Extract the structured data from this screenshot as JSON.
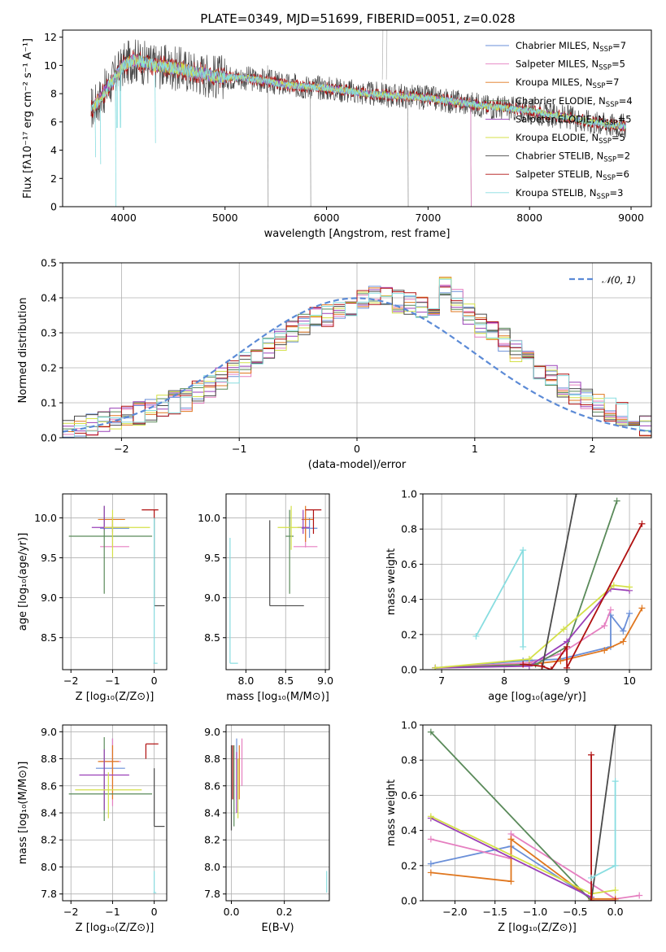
{
  "title": "PLATE=0349, MJD=51699, FIBERID=0051, z=0.028",
  "colors": {
    "Chabrier MILES": "#6a8fd8",
    "Salpeter MILES": "#e57fc0",
    "Kroupa MILES": "#e0771f",
    "Chabrier ELODIE": "#5a8a5a",
    "Salpeter ELODIE": "#9a40b8",
    "Kroupa ELODIE": "#d4e048",
    "Chabrier STELIB": "#4a4a4a",
    "Salpeter STELIB": "#b01010",
    "Kroupa STELIB": "#88dde0"
  },
  "chart_data": [
    {
      "id": "spectrum",
      "type": "line",
      "xlabel": "wavelength [Angstrom, rest frame]",
      "ylabel": "Flux [fλ10⁻¹⁷ erg cm⁻² s⁻¹ A⁻¹]",
      "xlim": [
        3400,
        9200
      ],
      "ylim": [
        0,
        12.5
      ],
      "xticks": [
        4000,
        5000,
        6000,
        7000,
        8000,
        9000
      ],
      "yticks": [
        0,
        2,
        4,
        6,
        8,
        10,
        12
      ],
      "grid": false,
      "legend_position": "top-right",
      "legend": [
        "Chabrier MILES, N_SSP=7",
        "Salpeter MILES, N_SSP=5",
        "Kroupa MILES, N_SSP=7",
        "Chabrier ELODIE, N_SSP=4",
        "Salpeter ELODIE, N_SSP=5",
        "Kroupa ELODIE, N_SSP=5",
        "Chabrier STELIB, N_SSP=2",
        "Salpeter STELIB, N_SSP=6",
        "Kroupa STELIB, N_SSP=3"
      ],
      "series": [
        {
          "name": "data",
          "x": [
            3700,
            3800,
            3900,
            4000,
            4100,
            4200,
            4300,
            4400,
            4500,
            4600,
            4700,
            4800,
            4900,
            5000,
            5200,
            5400,
            5600,
            5800,
            6000,
            6200,
            6400,
            6600,
            6800,
            7000,
            7200,
            7400,
            7600,
            7800,
            8000,
            8200,
            8400,
            8600,
            8800,
            8950
          ],
          "y": [
            7.5,
            8.5,
            9.5,
            10.5,
            10.8,
            10.5,
            10.3,
            10.0,
            9.9,
            9.8,
            9.6,
            9.5,
            9.3,
            9.3,
            9.2,
            9.0,
            8.7,
            8.6,
            8.5,
            8.3,
            8.1,
            8.0,
            7.9,
            7.8,
            7.6,
            7.4,
            7.2,
            7.0,
            6.9,
            6.6,
            6.3,
            6.0,
            5.8,
            5.7
          ]
        },
        {
          "name": "models",
          "x": [
            3700,
            3800,
            3900,
            4000,
            4100,
            4200,
            4300,
            4400,
            4500,
            4600,
            4700,
            4800,
            4900,
            5000,
            5200,
            5400,
            5600,
            5800,
            6000,
            6200,
            6400,
            6600,
            6800,
            7000,
            7200,
            7400,
            7600,
            7800,
            8000,
            8200,
            8400,
            8600,
            8800,
            8950
          ],
          "y": [
            7.0,
            8.0,
            9.0,
            10.0,
            10.4,
            10.2,
            10.0,
            9.9,
            9.8,
            9.7,
            9.5,
            9.4,
            9.2,
            9.2,
            9.1,
            8.9,
            8.6,
            8.5,
            8.4,
            8.2,
            8.0,
            7.9,
            7.8,
            7.7,
            7.5,
            7.3,
            7.1,
            6.95,
            6.8,
            6.5,
            6.3,
            6.0,
            5.8,
            5.7
          ]
        }
      ]
    },
    {
      "id": "residuals",
      "type": "line",
      "xlabel": "(data-model)/error",
      "ylabel": "Normed distribution",
      "xlim": [
        -2.5,
        2.5
      ],
      "ylim": [
        0,
        0.5
      ],
      "xticks": [
        -2,
        -1,
        0,
        1,
        2
      ],
      "yticks": [
        0.0,
        0.1,
        0.2,
        0.3,
        0.4,
        0.5
      ],
      "grid": true,
      "legend_position": "top-right",
      "legend": [
        "𝒩(0, 1)"
      ],
      "series": [
        {
          "name": "𝒩(0, 1)",
          "mu": 0,
          "sigma": 1
        }
      ],
      "histogram_bin_edges_start": -2.5,
      "histogram_bin_width": 0.1,
      "histogram_values": [
        0.02,
        0.03,
        0.04,
        0.05,
        0.05,
        0.06,
        0.07,
        0.08,
        0.09,
        0.1,
        0.11,
        0.13,
        0.15,
        0.17,
        0.19,
        0.21,
        0.23,
        0.26,
        0.28,
        0.3,
        0.32,
        0.34,
        0.35,
        0.37,
        0.38,
        0.39,
        0.4,
        0.41,
        0.39,
        0.38,
        0.37,
        0.38,
        0.44,
        0.39,
        0.35,
        0.32,
        0.3,
        0.28,
        0.25,
        0.22,
        0.2,
        0.18,
        0.15,
        0.13,
        0.11,
        0.09,
        0.08,
        0.07,
        0.05,
        0.04
      ]
    },
    {
      "id": "age-vs-Z",
      "type": "scatter",
      "xlabel": "Z [log₁₀(Z/Z⊙)]",
      "ylabel": "age  [log₁₀(age/yr)]",
      "xlim": [
        -2.2,
        0.3
      ],
      "ylim": [
        8.1,
        10.3
      ],
      "xticks": [
        -2,
        -1,
        0
      ],
      "yticks": [
        8.5,
        9.0,
        9.5,
        10.0
      ],
      "grid": true
    },
    {
      "id": "age-vs-mass",
      "type": "scatter",
      "xlabel": "mass [log₁₀(M/M⊙)]",
      "ylabel": "",
      "xlim": [
        7.75,
        9.05
      ],
      "ylim": [
        8.1,
        10.3
      ],
      "xticks": [
        8.0,
        8.5,
        9.0
      ],
      "yticks": [
        8.5,
        9.0,
        9.5,
        10.0
      ],
      "grid": true
    },
    {
      "id": "massweight-vs-age",
      "type": "line",
      "xlabel": "age  [log₁₀(age/yr)]",
      "ylabel": "mass weight",
      "xlim": [
        6.7,
        10.35
      ],
      "ylim": [
        0,
        1
      ],
      "xticks": [
        7,
        8,
        9,
        10
      ],
      "yticks": [
        0.0,
        0.2,
        0.4,
        0.6,
        0.8,
        1.0
      ],
      "grid": true,
      "series": [
        {
          "name": "Chabrier MILES",
          "x": [
            6.9,
            8.3,
            8.9,
            9.7,
            9.7,
            9.9,
            10.0
          ],
          "y": [
            0.01,
            0.05,
            0.06,
            0.13,
            0.31,
            0.22,
            0.32
          ]
        },
        {
          "name": "Salpeter MILES",
          "x": [
            6.9,
            8.4,
            8.9,
            9.6,
            9.7
          ],
          "y": [
            0.01,
            0.04,
            0.09,
            0.25,
            0.34
          ]
        },
        {
          "name": "Kroupa MILES",
          "x": [
            6.9,
            8.4,
            8.9,
            9.6,
            9.9,
            10.2
          ],
          "y": [
            0.01,
            0.03,
            0.05,
            0.11,
            0.16,
            0.35
          ]
        },
        {
          "name": "Chabrier ELODIE",
          "x": [
            6.9,
            8.5,
            9.0,
            9.8
          ],
          "y": [
            0.01,
            0.03,
            0.13,
            0.96
          ]
        },
        {
          "name": "Salpeter ELODIE",
          "x": [
            6.9,
            8.4,
            9.0,
            9.7,
            10.0
          ],
          "y": [
            0.01,
            0.02,
            0.16,
            0.46,
            0.45
          ]
        },
        {
          "name": "Kroupa ELODIE",
          "x": [
            6.9,
            8.4,
            8.95,
            9.75,
            10.0
          ],
          "y": [
            0.01,
            0.06,
            0.23,
            0.48,
            0.47
          ]
        },
        {
          "name": "Chabrier STELIB",
          "x": [
            8.6,
            9.15
          ],
          "y": [
            0.0,
            1.0
          ]
        },
        {
          "name": "Salpeter STELIB",
          "x": [
            8.3,
            8.6,
            8.75,
            9.0,
            9.0,
            10.2
          ],
          "y": [
            0.03,
            0.02,
            0.0,
            0.13,
            0.01,
            0.83
          ]
        },
        {
          "name": "Kroupa STELIB",
          "x": [
            7.55,
            8.3,
            8.3
          ],
          "y": [
            0.19,
            0.68,
            0.13
          ]
        }
      ]
    },
    {
      "id": "mass-vs-Z",
      "type": "scatter",
      "xlabel": "Z [log₁₀(Z/Z⊙)]",
      "ylabel": "mass [log₁₀(M/M⊙)]",
      "xlim": [
        -2.2,
        0.3
      ],
      "ylim": [
        7.75,
        9.05
      ],
      "xticks": [
        -2,
        -1,
        0
      ],
      "yticks": [
        7.8,
        8.0,
        8.2,
        8.4,
        8.6,
        8.8,
        9.0
      ],
      "grid": true
    },
    {
      "id": "mass-vs-EBV",
      "type": "scatter",
      "xlabel": "E(B-V)",
      "ylabel": "",
      "xlim": [
        -0.02,
        0.37
      ],
      "ylim": [
        7.75,
        9.05
      ],
      "xticks": [
        0.0,
        0.2
      ],
      "yticks": [
        7.8,
        8.0,
        8.2,
        8.4,
        8.6,
        8.8,
        9.0
      ],
      "grid": true
    },
    {
      "id": "massweight-vs-Z",
      "type": "line",
      "xlabel": "Z [log₁₀(Z/Z⊙)]",
      "ylabel": "mass weight",
      "xlim": [
        -2.4,
        0.45
      ],
      "ylim": [
        0,
        1
      ],
      "xticks": [
        -2.0,
        -1.5,
        -1.0,
        -0.5,
        0.0
      ],
      "yticks": [
        0.0,
        0.2,
        0.4,
        0.6,
        0.8,
        1.0
      ],
      "grid": true,
      "series": [
        {
          "name": "Chabrier MILES",
          "x": [
            -2.3,
            -1.3,
            -0.3
          ],
          "y": [
            0.21,
            0.31,
            0.01
          ]
        },
        {
          "name": "Salpeter MILES",
          "x": [
            -2.3,
            -1.3,
            -1.3,
            0.0,
            0.3
          ],
          "y": [
            0.35,
            0.24,
            0.38,
            0.01,
            0.03
          ]
        },
        {
          "name": "Kroupa MILES",
          "x": [
            -2.3,
            -1.3,
            -1.3,
            -0.3,
            0.0
          ],
          "y": [
            0.16,
            0.11,
            0.35,
            0.01,
            0.01
          ]
        },
        {
          "name": "Chabrier ELODIE",
          "x": [
            -2.3,
            -0.3
          ],
          "y": [
            0.96,
            0.0
          ]
        },
        {
          "name": "Salpeter ELODIE",
          "x": [
            -2.3,
            -0.3
          ],
          "y": [
            0.47,
            0.02
          ]
        },
        {
          "name": "Kroupa ELODIE",
          "x": [
            -2.3,
            -0.3,
            0.0
          ],
          "y": [
            0.48,
            0.04,
            0.06
          ]
        },
        {
          "name": "Chabrier STELIB",
          "x": [
            -0.3,
            0.0
          ],
          "y": [
            0.0,
            1.0
          ]
        },
        {
          "name": "Salpeter STELIB",
          "x": [
            -0.3,
            -0.3,
            0.0
          ],
          "y": [
            0.83,
            0.0,
            0.0
          ]
        },
        {
          "name": "Kroupa STELIB",
          "x": [
            -0.3,
            0.0,
            0.0
          ],
          "y": [
            0.13,
            0.2,
            0.68
          ]
        }
      ]
    }
  ]
}
